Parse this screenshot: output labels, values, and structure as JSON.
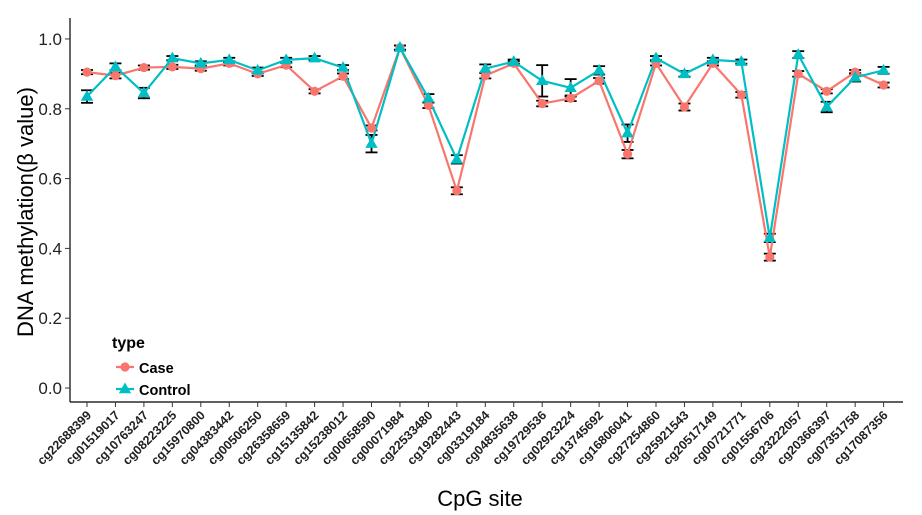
{
  "chart_data": {
    "type": "line",
    "xlabel": "CpG site",
    "ylabel": "DNA methylation(β value)",
    "ylim": [
      -0.04,
      1.06
    ],
    "yticks": [
      0.0,
      0.2,
      0.4,
      0.6,
      0.8,
      1.0
    ],
    "ytick_labels": [
      "0.0",
      "0.2",
      "0.4",
      "0.6",
      "0.8",
      "1.0"
    ],
    "grid": false,
    "legend_position": "bottom-left",
    "legend_title": "type",
    "categories": [
      "cg22688399",
      "cg01519017",
      "cg10763247",
      "cg08223225",
      "cg15970800",
      "cg04383442",
      "cg00506250",
      "cg26358659",
      "cg15135842",
      "cg15238012",
      "cg00658590",
      "cg00071984",
      "cg22533480",
      "cg19282443",
      "cg03319184",
      "cg04835638",
      "cg19729536",
      "cg02923224",
      "cg13745692",
      "cg16806041",
      "cg27254860",
      "cg25921543",
      "cg20517149",
      "cg00721771",
      "cg01556706",
      "cg23222057",
      "cg20366397",
      "cg07351758",
      "cg17087356"
    ],
    "series": [
      {
        "name": "Case",
        "color": "#F8766D",
        "marker": "circle",
        "values": [
          0.905,
          0.895,
          0.918,
          0.92,
          0.915,
          0.93,
          0.9,
          0.925,
          0.85,
          0.893,
          0.745,
          0.975,
          0.81,
          0.565,
          0.895,
          0.93,
          0.815,
          0.83,
          0.88,
          0.67,
          0.93,
          0.805,
          0.93,
          0.84,
          0.375,
          0.9,
          0.85,
          0.905,
          0.868
        ],
        "errors": [
          0.006,
          0.008,
          0.006,
          0.006,
          0.006,
          0.006,
          0.006,
          0.006,
          0.006,
          0.008,
          0.007,
          0.006,
          0.008,
          0.01,
          0.008,
          0.006,
          0.008,
          0.008,
          0.008,
          0.012,
          0.006,
          0.01,
          0.006,
          0.008,
          0.01,
          0.008,
          0.006,
          0.006,
          0.007
        ]
      },
      {
        "name": "Control",
        "color": "#00BFC4",
        "marker": "triangle",
        "values": [
          0.835,
          0.92,
          0.845,
          0.945,
          0.93,
          0.94,
          0.91,
          0.94,
          0.945,
          0.918,
          0.7,
          0.975,
          0.83,
          0.655,
          0.915,
          0.935,
          0.88,
          0.86,
          0.91,
          0.73,
          0.945,
          0.9,
          0.94,
          0.935,
          0.43,
          0.955,
          0.805,
          0.89,
          0.91
        ]
      }
    ],
    "control_errors": [
      0.018,
      0.01,
      0.015,
      0.006,
      0.006,
      0.006,
      0.008,
      0.006,
      0.006,
      0.007,
      0.025,
      0.006,
      0.012,
      0.012,
      0.012,
      0.006,
      0.045,
      0.025,
      0.012,
      0.025,
      0.006,
      0.008,
      0.006,
      0.006,
      0.012,
      0.01,
      0.015,
      0.012,
      0.01
    ]
  }
}
